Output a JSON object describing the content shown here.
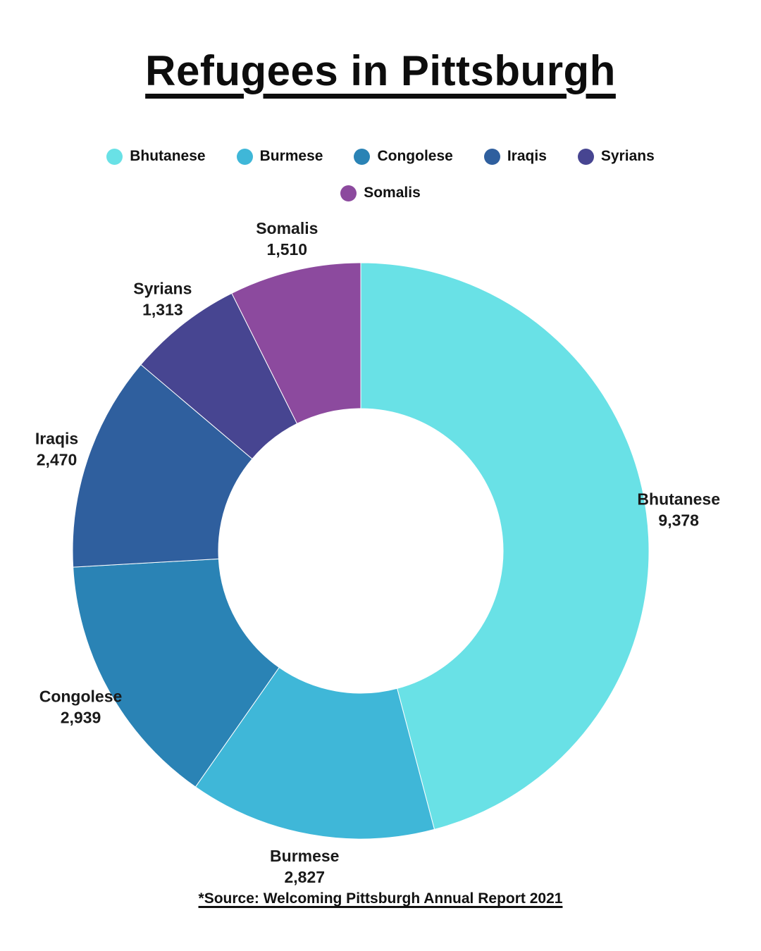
{
  "title": "Refugees in Pittsburgh",
  "source": "*Source: Welcoming Pittsburgh Annual Report 2021",
  "chart_data": {
    "type": "pie",
    "subtype": "donut",
    "title": "Refugees in Pittsburgh",
    "categories": [
      "Bhutanese",
      "Burmese",
      "Congolese",
      "Iraqis",
      "Syrians",
      "Somalis"
    ],
    "values": [
      9378,
      2827,
      2939,
      2470,
      1313,
      1510
    ],
    "value_labels": [
      "9,378",
      "2,827",
      "2,939",
      "2,470",
      "1,313",
      "1,510"
    ],
    "colors": [
      "#69E1E6",
      "#3FB7D8",
      "#2A83B5",
      "#2F5F9E",
      "#474591",
      "#8C4A9E"
    ],
    "start_angle_deg": 0,
    "direction": "clockwise",
    "legend_position": "top",
    "labels_outside": true,
    "background_color": "#ffffff",
    "text_color": "#1a1a1a",
    "source": "*Source: Welcoming Pittsburgh Annual Report 2021"
  }
}
